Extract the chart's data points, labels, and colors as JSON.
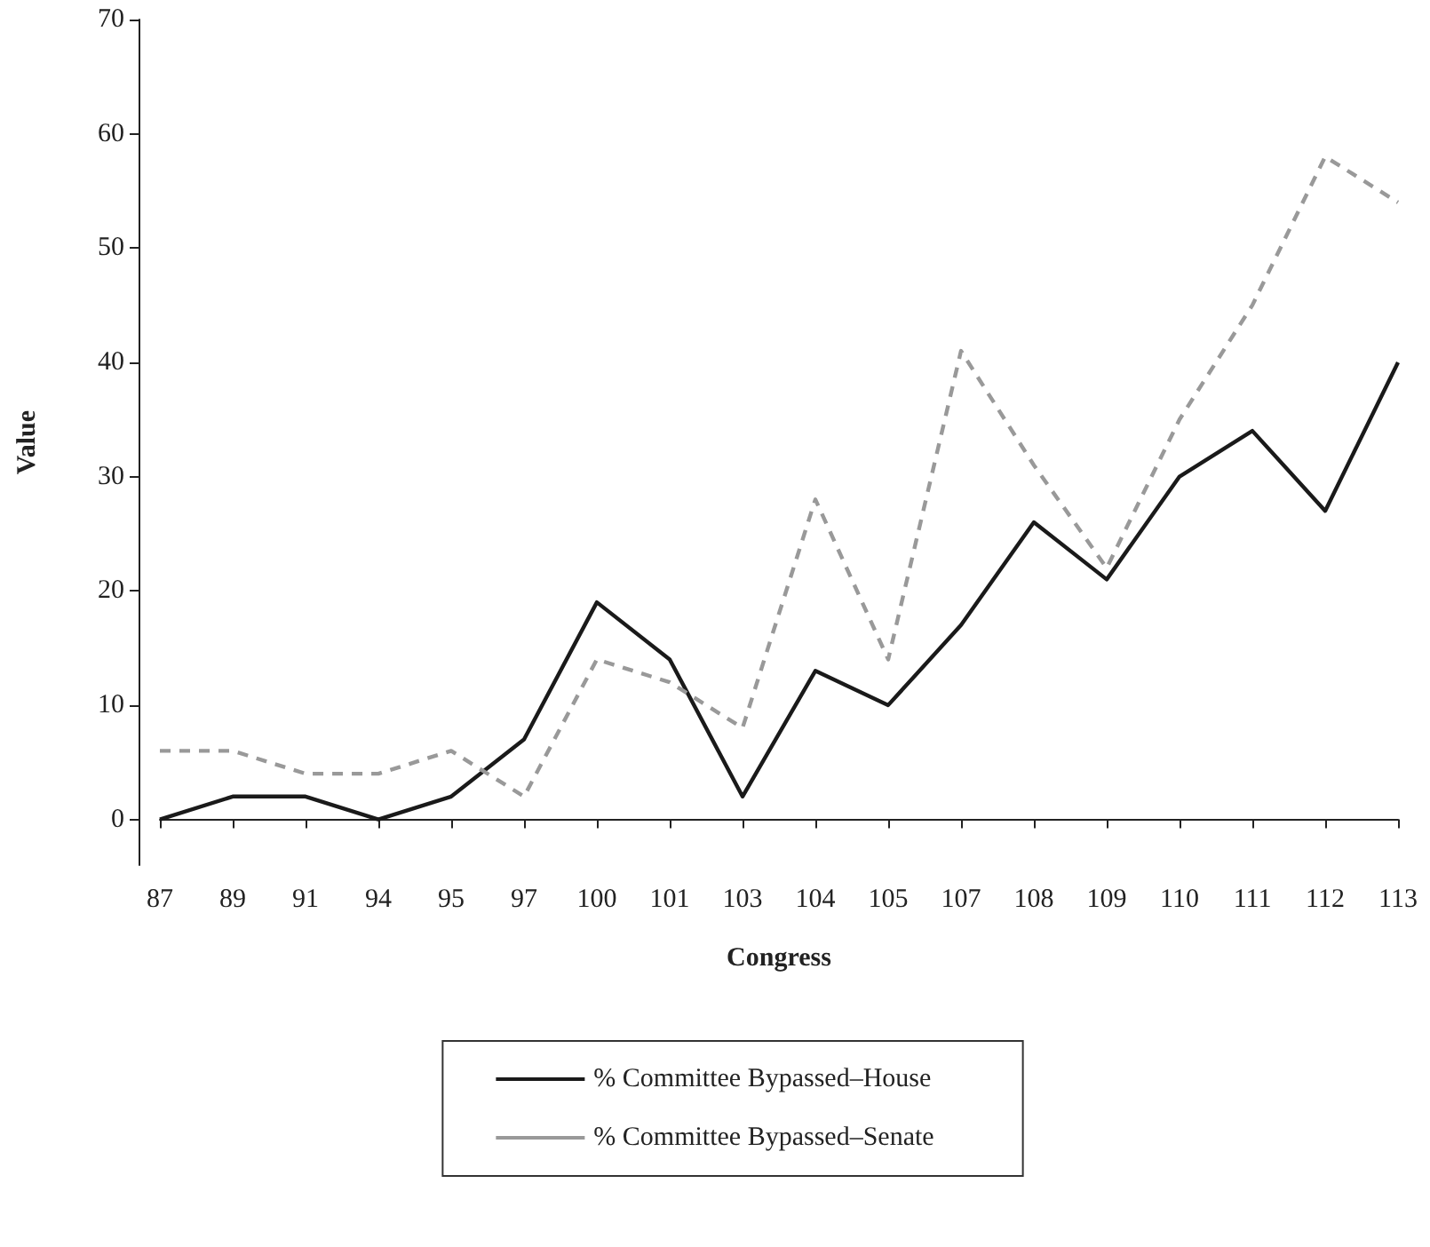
{
  "chart_data": {
    "type": "line",
    "xlabel": "Congress",
    "ylabel": "Value",
    "categories": [
      "87",
      "89",
      "91",
      "94",
      "95",
      "97",
      "100",
      "101",
      "103",
      "104",
      "105",
      "107",
      "108",
      "109",
      "110",
      "111",
      "112",
      "113"
    ],
    "series": [
      {
        "name": "% Committee Bypassed–House",
        "color": "#1a1a1a",
        "line_style": "solid",
        "values": [
          0,
          2,
          2,
          0,
          2,
          7,
          19,
          14,
          2,
          13,
          10,
          17,
          26,
          21,
          30,
          34,
          27,
          40
        ]
      },
      {
        "name": "% Committee Bypassed–Senate",
        "color": "#999999",
        "line_style": "dashed",
        "values": [
          6,
          6,
          4,
          4,
          6,
          2,
          14,
          12,
          8,
          28,
          14,
          41,
          31,
          22,
          35,
          45,
          58,
          54
        ]
      }
    ],
    "ylim": [
      -4,
      70
    ],
    "yticks": [
      0,
      10,
      20,
      30,
      40,
      50,
      60,
      70
    ],
    "grid": false,
    "legend": "bottom",
    "marker": "none"
  }
}
